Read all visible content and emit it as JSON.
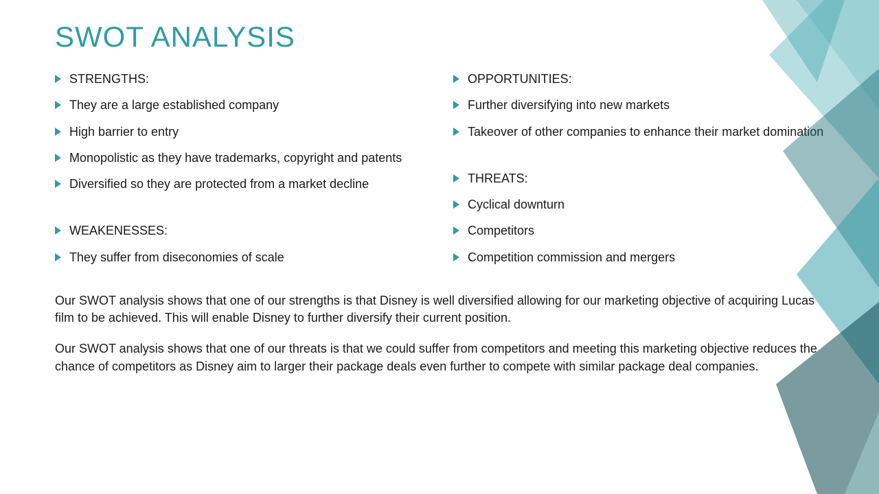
{
  "title": "SWOT ANALYSIS",
  "colors": {
    "title": "#2e9ca6",
    "bullet": "#2e9ca6",
    "text": "#1a1a1a",
    "background": "#ffffff",
    "shape_light": "#a8d5d8",
    "shape_mid": "#5fb8bd",
    "shape_dark": "#1f6f78",
    "shape_accent": "#0d4a52"
  },
  "typography": {
    "title_fontsize": 42,
    "body_fontsize": 18,
    "font_family": "Segoe UI"
  },
  "left_column": [
    {
      "text": "STRENGTHS:",
      "type": "header"
    },
    {
      "text": "They are a large established company"
    },
    {
      "text": "High barrier to entry"
    },
    {
      "text": "Monopolistic as they have trademarks, copyright and patents"
    },
    {
      "text": "Diversified so they are protected from a market decline"
    },
    {
      "type": "spacer"
    },
    {
      "text": "WEAKENESSES:",
      "type": "header"
    },
    {
      "text": "They suffer from diseconomies of scale"
    }
  ],
  "right_column": [
    {
      "text": "OPPORTUNITIES:",
      "type": "header"
    },
    {
      "text": "Further diversifying into new markets"
    },
    {
      "text": "Takeover of other companies to enhance their market domination"
    },
    {
      "type": "spacer"
    },
    {
      "text": "THREATS:",
      "type": "header"
    },
    {
      "text": "Cyclical downturn"
    },
    {
      "text": "Competitors"
    },
    {
      "text": "Competition commission and mergers"
    }
  ],
  "summary_paragraphs": [
    "Our SWOT analysis shows that one of our strengths is that Disney is well diversified allowing for our marketing objective of acquiring Lucas film to be achieved. This will enable Disney to further diversify their current position.",
    "Our SWOT analysis shows that one of our threats is that we could suffer from competitors and meeting this marketing objective reduces the chance of competitors as Disney aim to larger their package deals even further to compete with similar package deal companies."
  ]
}
